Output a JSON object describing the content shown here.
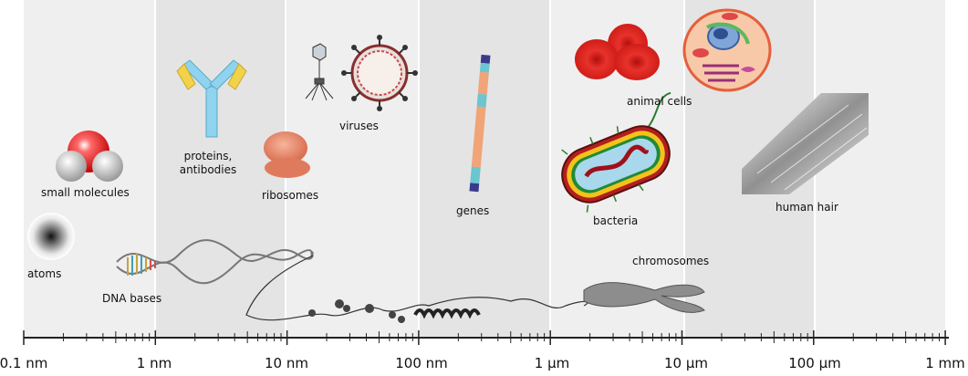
{
  "labels": {
    "atoms": "atoms",
    "small_molecules": "small molecules",
    "dna_bases": "DNA bases",
    "proteins_line1": "proteins,",
    "proteins_line2": "antibodies",
    "ribosomes": "ribosomes",
    "viruses": "viruses",
    "genes": "genes",
    "animal_cells": "animal cells",
    "bacteria": "bacteria",
    "chromosomes": "chromosomes",
    "human_hair": "human hair"
  },
  "scale": [
    "0.1 nm",
    "1 nm",
    "10 nm",
    "100 nm",
    "1 µm",
    "10 µm",
    "100 µm",
    "1 mm"
  ],
  "colors": {
    "band_light": "#efefef",
    "band_dark": "#e4e4e4",
    "axis": "#222222",
    "blood_red": "#d9211c",
    "antibody_blue": "#8fd3ef",
    "antibody_yellow": "#f2d24a",
    "gene_orange": "#f0a477",
    "gene_teal": "#6cc5cf",
    "gene_navy": "#3a3a8c"
  }
}
